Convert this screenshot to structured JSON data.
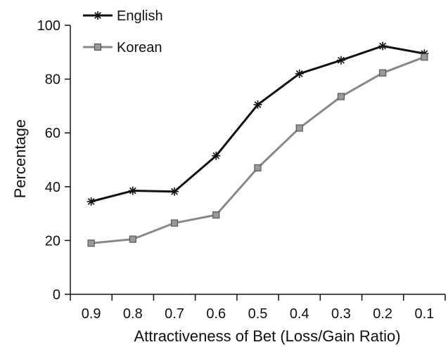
{
  "chart_data": {
    "type": "line",
    "title": "",
    "xlabel": "Attractiveness of Bet (Loss/Gain Ratio)",
    "ylabel": "Percentage",
    "categories": [
      "0.9",
      "0.8",
      "0.7",
      "0.6",
      "0.5",
      "0.4",
      "0.3",
      "0.2",
      "0.1"
    ],
    "ylim": [
      0,
      100
    ],
    "yticks": [
      0,
      20,
      40,
      60,
      80,
      100
    ],
    "grid": false,
    "legend_position": "top-left",
    "series": [
      {
        "name": "English",
        "marker": "asterisk",
        "color": "#111111",
        "values": [
          34.5,
          38.5,
          38.2,
          51.5,
          70.5,
          82.0,
          87.0,
          92.3,
          89.5
        ]
      },
      {
        "name": "Korean",
        "marker": "square",
        "color": "#888888",
        "marker_fill": "#9a9a9a",
        "values": [
          19.0,
          20.5,
          26.5,
          29.5,
          47.0,
          61.8,
          73.5,
          82.3,
          88.2
        ]
      }
    ]
  }
}
